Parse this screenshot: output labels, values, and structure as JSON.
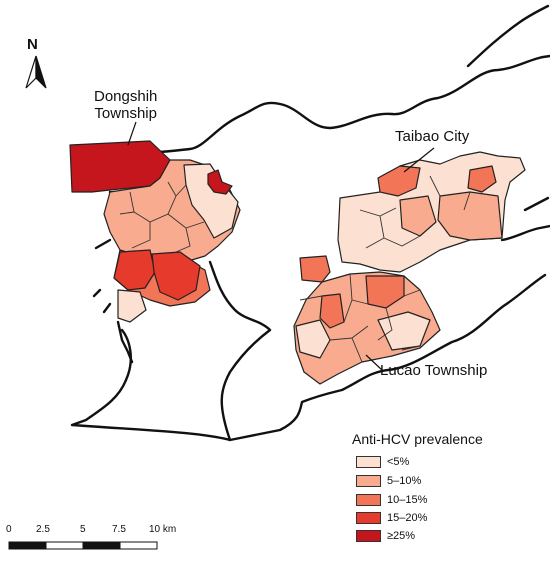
{
  "north_arrow": {
    "label": "N"
  },
  "place_labels": {
    "dongshih_line1": "Dongshih",
    "dongshih_line2": "Township",
    "taibao": "Taibao City",
    "lucao": "Lucao Township"
  },
  "legend": {
    "title": "Anti-HCV prevalence",
    "items": [
      {
        "label": "<5%",
        "color": "#fce0d1"
      },
      {
        "label": "5–10%",
        "color": "#f8ab8f"
      },
      {
        "label": "10–15%",
        "color": "#f27558"
      },
      {
        "label": "15–20%",
        "color": "#e53a2c"
      },
      {
        "label": "≥25%",
        "color": "#c4161c"
      }
    ]
  },
  "scale_bar": {
    "ticks": [
      "0",
      "2.5",
      "5",
      "7.5",
      "10 km"
    ]
  }
}
